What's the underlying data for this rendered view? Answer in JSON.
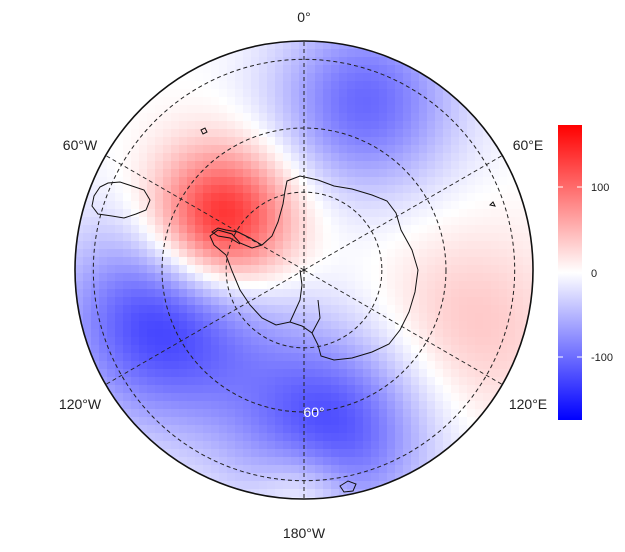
{
  "map": {
    "projection": "south polar stereographic",
    "longitude_labels": [
      "0°",
      "60°E",
      "120°E",
      "180°W",
      "120°W",
      "60°W"
    ],
    "latitude_label": "60°",
    "graticule": "dashed",
    "coastlines": true
  },
  "colorbar": {
    "ticks": [
      "100",
      "0",
      "-100"
    ],
    "range": [
      -170,
      170
    ],
    "colors": [
      "#0000ff",
      "#ffffff",
      "#ff0000"
    ]
  },
  "field": {
    "anomaly_centers": [
      {
        "lon_deg": -60,
        "colat_frac": 0.42,
        "value": 170,
        "spread": 0.22
      },
      {
        "lon_deg": 20,
        "colat_frac": 0.78,
        "value": -100,
        "spread": 0.28
      },
      {
        "lon_deg": -110,
        "colat_frac": 0.65,
        "value": -130,
        "spread": 0.32
      },
      {
        "lon_deg": 170,
        "colat_frac": 0.7,
        "value": -120,
        "spread": 0.3
      },
      {
        "lon_deg": 110,
        "colat_frac": 0.75,
        "value": 40,
        "spread": 0.3
      },
      {
        "lon_deg": 180,
        "colat_frac": 0.97,
        "value": 50,
        "spread": 0.15
      }
    ]
  }
}
